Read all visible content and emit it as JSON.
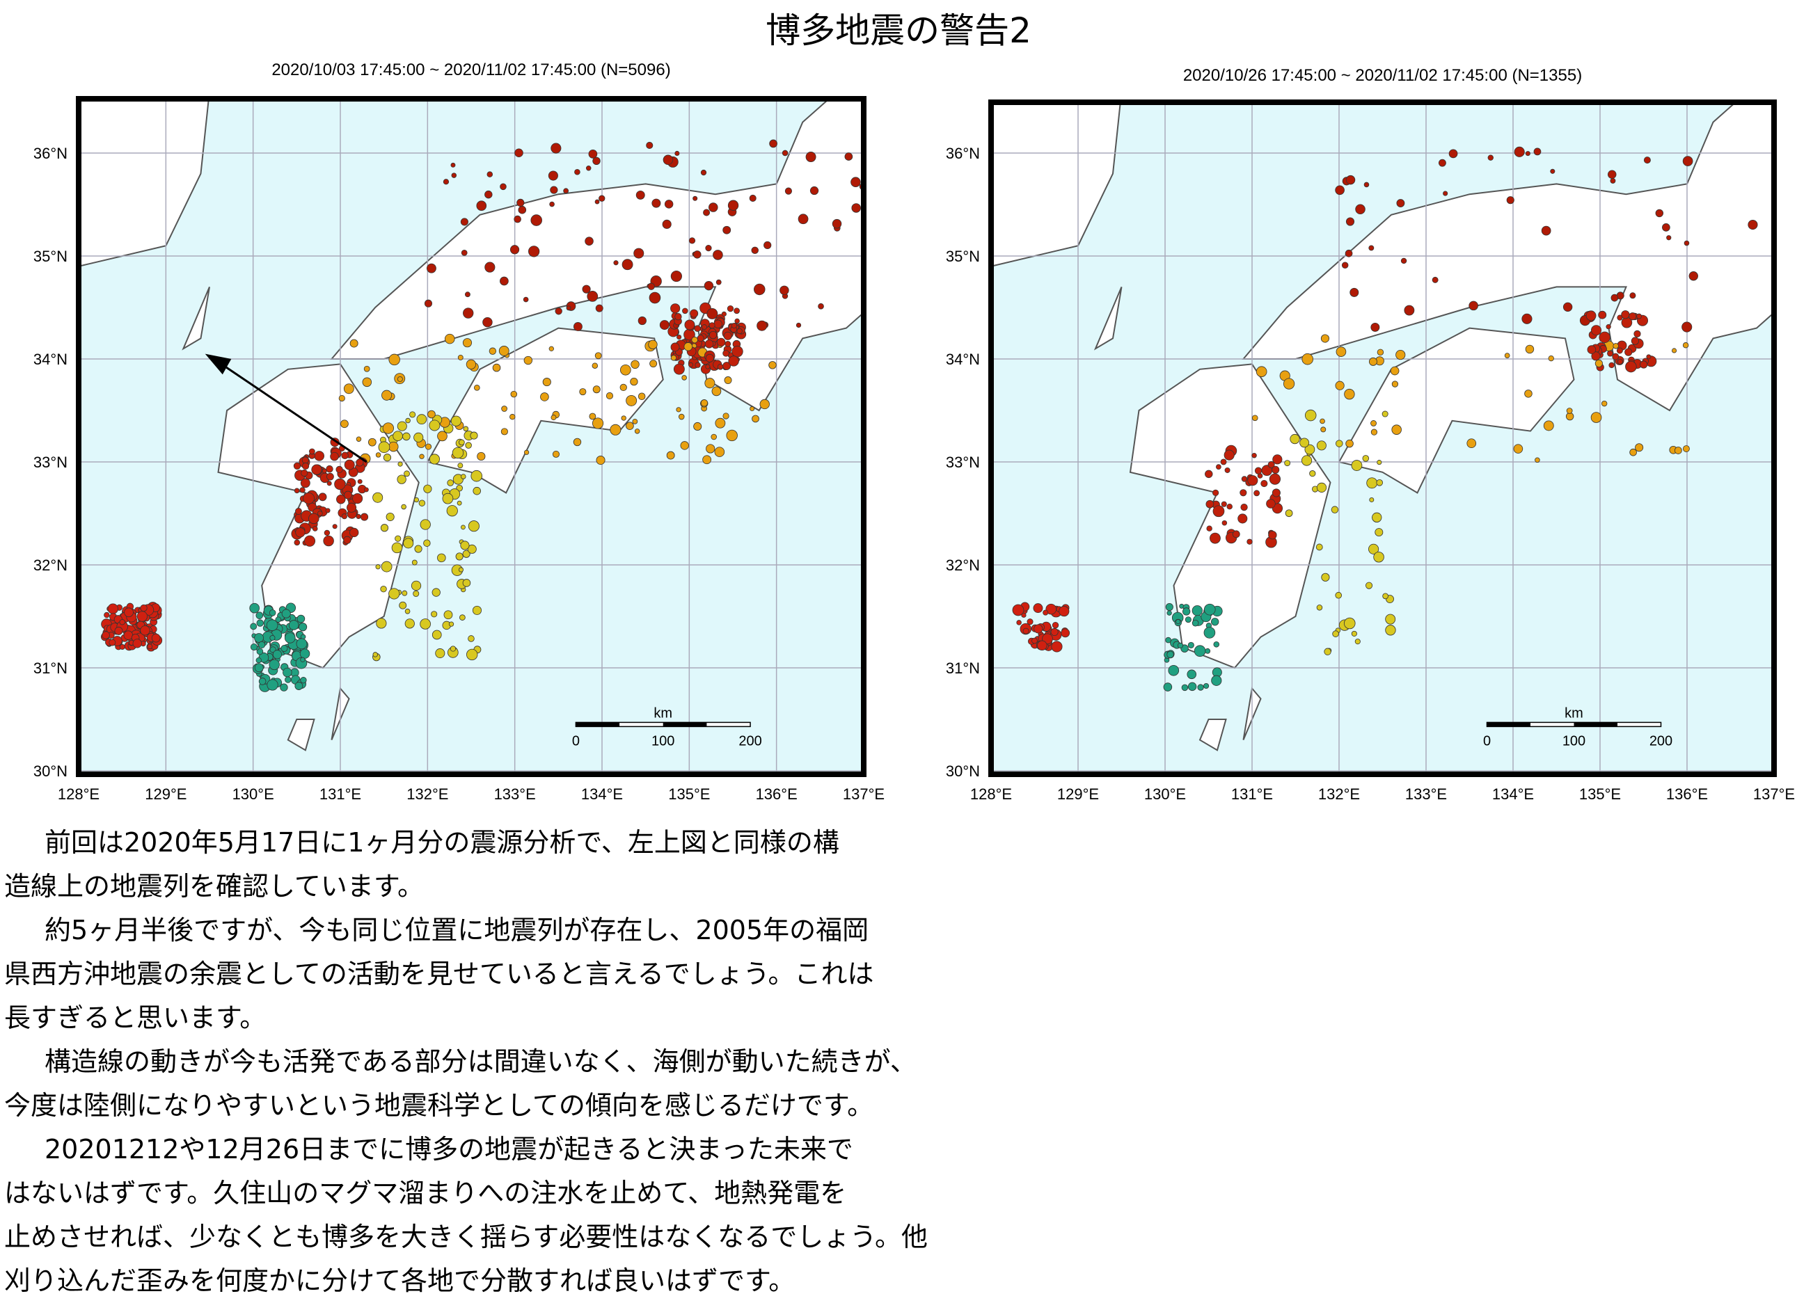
{
  "title": "博多地震の警告2",
  "maps": [
    {
      "header": "2020/10/03 17:45:00 ~ 2020/11/02 17:45:00 (N=5096)",
      "lat_labels": [
        "36°N",
        "35°N",
        "34°N",
        "33°N",
        "32°N",
        "31°N",
        "30°N"
      ],
      "lon_labels": [
        "128°E",
        "129°E",
        "130°E",
        "131°E",
        "132°E",
        "133°E",
        "134°E",
        "135°E",
        "136°E",
        "137°E"
      ],
      "scale": {
        "unit": "km",
        "ticks": [
          "0",
          "100",
          "200"
        ]
      }
    },
    {
      "header": "2020/10/26 17:45:00 ~ 2020/11/02 17:45:00 (N=1355)",
      "lat_labels": [
        "36°N",
        "35°N",
        "34°N",
        "33°N",
        "32°N",
        "31°N",
        "30°N"
      ],
      "lon_labels": [
        "128°E",
        "129°E",
        "130°E",
        "131°E",
        "132°E",
        "133°E",
        "134°E",
        "135°E",
        "136°E",
        "137°E"
      ],
      "scale": {
        "unit": "km",
        "ticks": [
          "0",
          "100",
          "200"
        ]
      }
    }
  ],
  "paragraphs": [
    [
      "前回は2020年5月17日に1ヶ月分の震源分析で、左上図と同様の構",
      "造線上の地震列を確認しています。"
    ],
    [
      "約5ヶ月半後ですが、今も同じ位置に地震列が存在し、2005年の福岡",
      "県西方沖地震の余震としての活動を見せていると言えるでしょう。これは",
      "長すぎると思います。"
    ],
    [
      "構造線の動きが今も活発である部分は間違いなく、海側が動いた続きが、",
      "今度は陸側になりやすいという地震科学としての傾向を感じるだけです。"
    ],
    [
      "20201212や12月26日までに博多の地震が起きると決まった未来で",
      "はないはずです。久住山のマグマ溜まりへの注水を止めて、地熱発電を",
      "止めさせれば、少なくとも博多を大きく揺らす必要性はなくなるでしょう。他",
      "刈り込んだ歪みを何度かに分けて各地で分散すれば良いはずです。"
    ]
  ]
}
